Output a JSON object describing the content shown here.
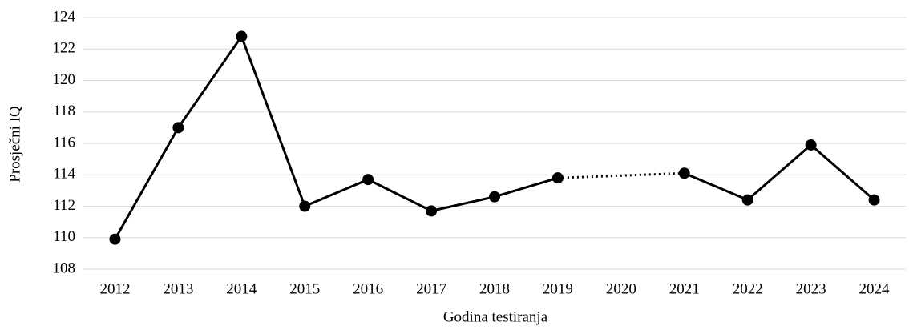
{
  "chart_data": {
    "type": "line",
    "x_label": "Godina testiranja",
    "y_label": "Prosječni IQ",
    "categories": [
      "2012",
      "2013",
      "2014",
      "2015",
      "2016",
      "2017",
      "2018",
      "2019",
      "2020",
      "2021",
      "2022",
      "2023",
      "2024"
    ],
    "values": [
      109.9,
      117.0,
      122.8,
      112.0,
      113.7,
      111.7,
      112.6,
      113.8,
      null,
      114.1,
      112.4,
      115.9,
      112.4
    ],
    "color": "#000000",
    "gap_line": "dotted",
    "ylim": [
      108,
      124
    ],
    "yticks": [
      108,
      110,
      112,
      114,
      116,
      118,
      120,
      122,
      124
    ],
    "grid": true
  }
}
